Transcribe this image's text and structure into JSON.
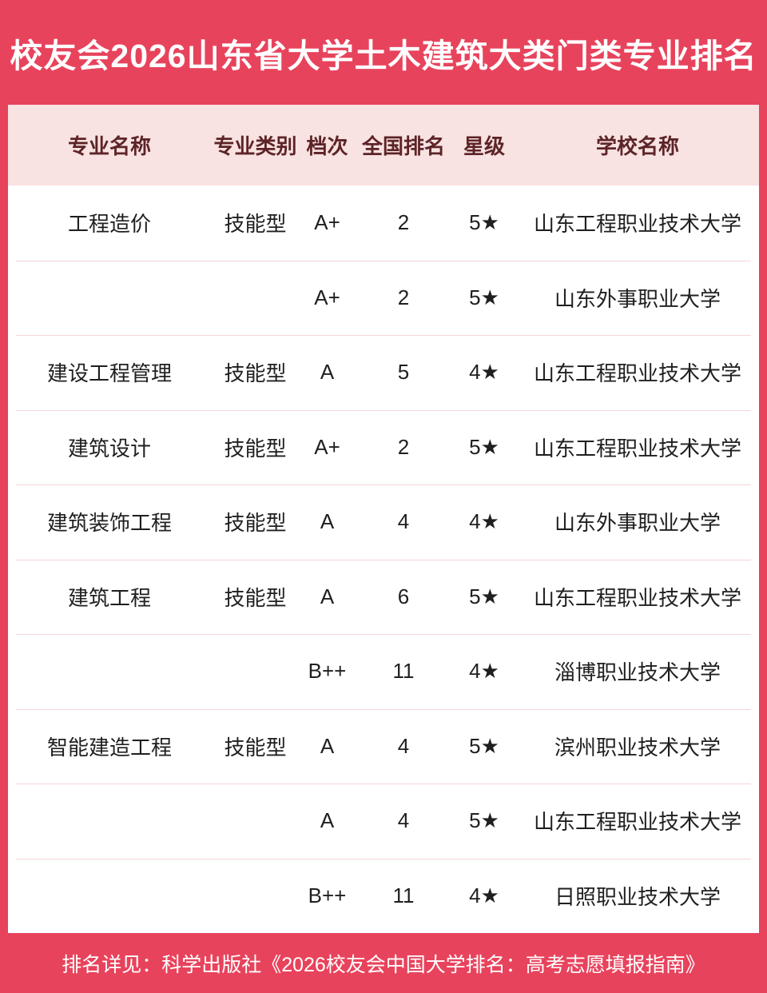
{
  "title": "校友会2026山东省大学土木建筑大类门类专业排名",
  "colors": {
    "frame_red": "#e8435c",
    "header_row_pink": "#f8e2e2",
    "header_text_maroon": "#5d2427",
    "body_text": "#1f1f1f",
    "row_divider_pink": "#f3d6d6",
    "table_bg": "#ffffff",
    "title_text": "#ffffff"
  },
  "table": {
    "headers": [
      "专业名称",
      "专业类别",
      "档次",
      "全国排名",
      "星级",
      "学校名称"
    ],
    "rows": [
      {
        "major": "工程造价",
        "category": "技能型",
        "grade": "A+",
        "rank": "2",
        "stars": "5★",
        "school": "山东工程职业技术大学"
      },
      {
        "major": "",
        "category": "",
        "grade": "A+",
        "rank": "2",
        "stars": "5★",
        "school": "山东外事职业大学"
      },
      {
        "major": "建设工程管理",
        "category": "技能型",
        "grade": "A",
        "rank": "5",
        "stars": "4★",
        "school": "山东工程职业技术大学"
      },
      {
        "major": "建筑设计",
        "category": "技能型",
        "grade": "A+",
        "rank": "2",
        "stars": "5★",
        "school": "山东工程职业技术大学"
      },
      {
        "major": "建筑装饰工程",
        "category": "技能型",
        "grade": "A",
        "rank": "4",
        "stars": "4★",
        "school": "山东外事职业大学"
      },
      {
        "major": "建筑工程",
        "category": "技能型",
        "grade": "A",
        "rank": "6",
        "stars": "5★",
        "school": "山东工程职业技术大学"
      },
      {
        "major": "",
        "category": "",
        "grade": "B++",
        "rank": "11",
        "stars": "4★",
        "school": "淄博职业技术大学"
      },
      {
        "major": "智能建造工程",
        "category": "技能型",
        "grade": "A",
        "rank": "4",
        "stars": "5★",
        "school": "滨州职业技术大学"
      },
      {
        "major": "",
        "category": "",
        "grade": "A",
        "rank": "4",
        "stars": "5★",
        "school": "山东工程职业技术大学"
      },
      {
        "major": "",
        "category": "",
        "grade": "B++",
        "rank": "11",
        "stars": "4★",
        "school": "日照职业技术大学"
      }
    ]
  },
  "footer": {
    "text": "排名详见：科学出版社《2026校友会中国大学排名：高考志愿填报指南》"
  },
  "chart_data": {
    "type": "table",
    "title": "校友会2026山东省大学土木建筑大类门类专业排名",
    "columns": [
      "专业名称",
      "专业类别",
      "档次",
      "全国排名",
      "星级",
      "学校名称"
    ],
    "rows": [
      [
        "工程造价",
        "技能型",
        "A+",
        "2",
        "5★",
        "山东工程职业技术大学"
      ],
      [
        "",
        "",
        "A+",
        "2",
        "5★",
        "山东外事职业大学"
      ],
      [
        "建设工程管理",
        "技能型",
        "A",
        "5",
        "4★",
        "山东工程职业技术大学"
      ],
      [
        "建筑设计",
        "技能型",
        "A+",
        "2",
        "5★",
        "山东工程职业技术大学"
      ],
      [
        "建筑装饰工程",
        "技能型",
        "A",
        "4",
        "4★",
        "山东外事职业大学"
      ],
      [
        "建筑工程",
        "技能型",
        "A",
        "6",
        "5★",
        "山东工程职业技术大学"
      ],
      [
        "",
        "",
        "B++",
        "11",
        "4★",
        "淄博职业技术大学"
      ],
      [
        "智能建造工程",
        "技能型",
        "A",
        "4",
        "5★",
        "滨州职业技术大学"
      ],
      [
        "",
        "",
        "A",
        "4",
        "5★",
        "山东工程职业技术大学"
      ],
      [
        "",
        "",
        "B++",
        "11",
        "4★",
        "日照职业技术大学"
      ]
    ],
    "source_note": "排名详见：科学出版社《2026校友会中国大学排名：高考志愿填报指南》"
  }
}
